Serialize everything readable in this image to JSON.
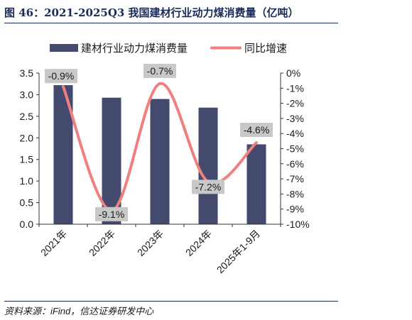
{
  "figure": {
    "title": "图 46：2021-2025Q3 我国建材行业动力煤消费量（亿吨）",
    "source": "资料来源：iFind，信达证券研发中心"
  },
  "chart_data": {
    "type": "bar",
    "categories": [
      "2021年",
      "2022年",
      "2023年",
      "2024年",
      "2025年1-9月"
    ],
    "series": [
      {
        "name": "建材行业动力煤消费量",
        "type": "bar",
        "axis": "left",
        "color": "#434a6d",
        "values": [
          3.22,
          2.93,
          2.9,
          2.7,
          1.85
        ]
      },
      {
        "name": "同比增速",
        "type": "line",
        "axis": "right",
        "color": "#f08080",
        "values": [
          -0.9,
          -9.1,
          -0.7,
          -7.2,
          -4.6
        ],
        "labels": [
          "-0.9%",
          "-9.1%",
          "-0.7%",
          "-7.2%",
          "-4.6%"
        ]
      }
    ],
    "y_left": {
      "min": 0,
      "max": 3.5,
      "ticks": [
        "0.0",
        "0.5",
        "1.0",
        "1.5",
        "2.0",
        "2.5",
        "3.0",
        "3.5"
      ]
    },
    "y_right": {
      "min": -10,
      "max": 0,
      "ticks": [
        "0%",
        "-1%",
        "-2%",
        "-3%",
        "-4%",
        "-5%",
        "-6%",
        "-7%",
        "-8%",
        "-9%",
        "-10%"
      ]
    },
    "legend_position": "top",
    "grid": false
  }
}
